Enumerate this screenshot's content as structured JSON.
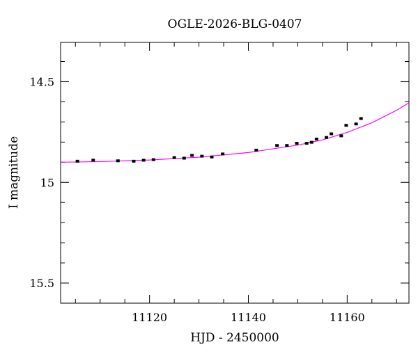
{
  "chart_data": {
    "type": "scatter",
    "title": "OGLE-2026-BLG-0407",
    "xlabel": "HJD - 2450000",
    "ylabel": "I magnitude",
    "xlim": [
      11102,
      11172.5
    ],
    "ylim": [
      15.6,
      14.305
    ],
    "y_inverted": true,
    "x_ticks": [
      11120,
      11140,
      11160
    ],
    "y_ticks": [
      14.5,
      15,
      15.5
    ],
    "x_tick_labels": [
      "11120",
      "11140",
      "11160"
    ],
    "y_tick_labels": [
      "14.5",
      "15",
      "15.5"
    ],
    "grid": false,
    "series": [
      {
        "kind": "points",
        "color": "#000000",
        "x": [
          11105.4,
          11108.6,
          11113.6,
          11116.8,
          11118.8,
          11120.8,
          11125,
          11127,
          11128.6,
          11130.6,
          11132.6,
          11134.8,
          11141.6,
          11145.8,
          11147.8,
          11149.8,
          11151.8,
          11152.8,
          11153.8,
          11155.8,
          11156.8,
          11158.8,
          11159.8,
          11161.8,
          11162.8
        ],
        "y": [
          14.895,
          14.89,
          14.893,
          14.895,
          14.89,
          14.887,
          14.877,
          14.88,
          14.866,
          14.87,
          14.874,
          14.859,
          14.84,
          14.817,
          14.817,
          14.806,
          14.806,
          14.801,
          14.785,
          14.777,
          14.759,
          14.769,
          14.717,
          14.71,
          14.683
        ]
      },
      {
        "kind": "model",
        "color": "#ff00ff",
        "x": [
          11102,
          11110,
          11120,
          11130,
          11140,
          11150,
          11155,
          11160,
          11165,
          11170,
          11172.5
        ],
        "y": [
          14.9,
          14.897,
          14.889,
          14.875,
          14.852,
          14.815,
          14.789,
          14.752,
          14.704,
          14.642,
          14.605
        ]
      }
    ]
  }
}
